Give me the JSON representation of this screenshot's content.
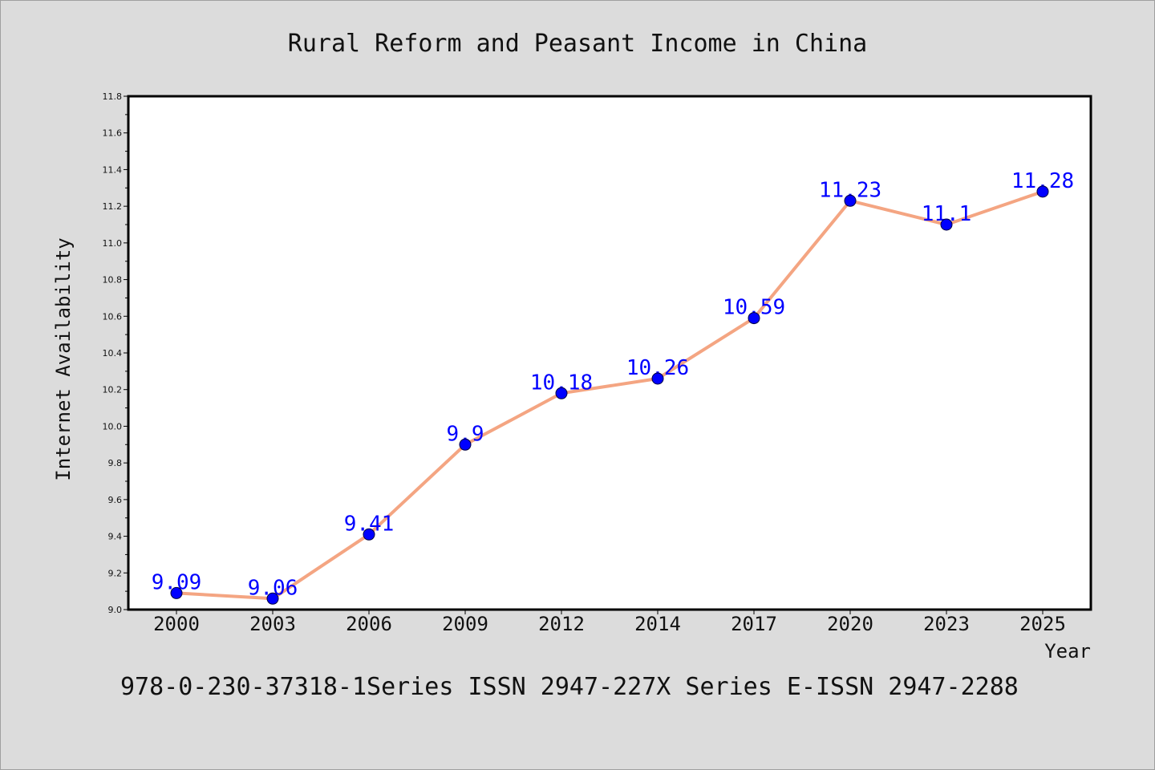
{
  "chart_data": {
    "type": "line",
    "title": "Rural Reform and Peasant Income in China",
    "xlabel": "Year",
    "ylabel": "Internet Availability",
    "categories": [
      "2000",
      "2003",
      "2006",
      "2009",
      "2012",
      "2014",
      "2017",
      "2020",
      "2023",
      "2025"
    ],
    "series": [
      {
        "values": [
          9.09,
          9.06,
          9.41,
          9.9,
          10.18,
          10.26,
          10.59,
          11.23,
          11.1,
          11.28
        ]
      }
    ],
    "ylim": [
      9.0,
      11.8
    ],
    "yticks": [
      "9.0",
      "9.2",
      "9.4",
      "9.6",
      "9.8",
      "10.0",
      "10.2",
      "10.4",
      "10.6",
      "10.8",
      "11.0",
      "11.2",
      "11.4",
      "11.6",
      "11.8"
    ],
    "y_minor_ticks": true,
    "grid": false,
    "legend": false,
    "data_labels": true,
    "colors": {
      "background": "#dcdcdc",
      "plot_background": "#ffffff",
      "line": "#f4a582",
      "marker": "#0000ff",
      "data_label": "#0000ff"
    }
  },
  "footer": "978-0-230-37318-1Series ISSN 2947-227X Series E-ISSN 2947-2288"
}
